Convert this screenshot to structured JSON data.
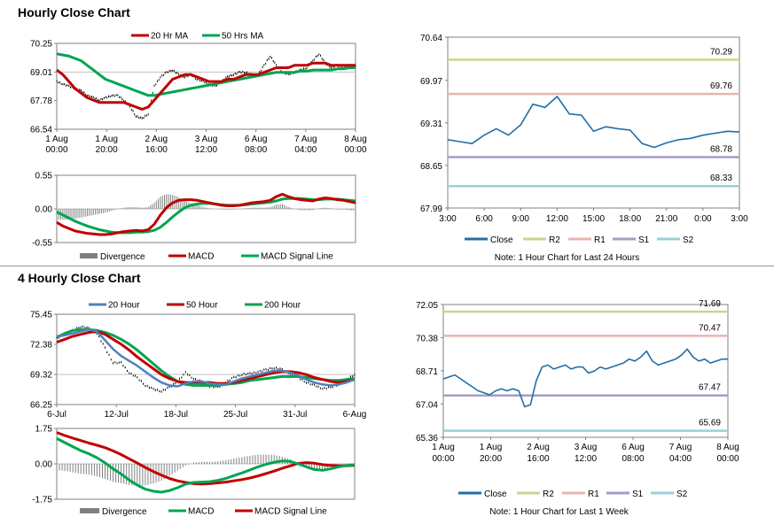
{
  "titles": {
    "hourly": "Hourly Close Chart",
    "four_hourly": "4 Hourly Close Chart"
  },
  "chart_data": [
    {
      "id": "hourly_price",
      "type": "line",
      "legend": [
        "20 Hr MA",
        "50 Hrs MA"
      ],
      "colors": {
        "price": "#000000",
        "ma_short": "#c00000",
        "ma_long": "#00a550"
      },
      "ylim": [
        66.54,
        70.25
      ],
      "yticks": [
        "70.25",
        "69.01",
        "67.78",
        "66.54"
      ],
      "xticks": [
        [
          "1 Aug",
          "00:00"
        ],
        [
          "1 Aug",
          "20:00"
        ],
        [
          "2 Aug",
          "16:00"
        ],
        [
          "3 Aug",
          "12:00"
        ],
        [
          "6 Aug",
          "08:00"
        ],
        [
          "7 Aug",
          "04:00"
        ],
        [
          "8 Aug",
          "00:00"
        ]
      ],
      "price": [
        68.6,
        68.5,
        68.4,
        68.3,
        68.2,
        68.0,
        67.9,
        67.8,
        67.9,
        68.0,
        68.0,
        67.8,
        67.5,
        67.1,
        67.0,
        67.2,
        68.4,
        68.8,
        69.0,
        69.1,
        68.9,
        68.8,
        68.9,
        68.7,
        68.6,
        68.5,
        68.4,
        68.6,
        68.8,
        68.9,
        69.0,
        69.0,
        68.9,
        68.9,
        69.3,
        69.7,
        69.3,
        69.0,
        68.9,
        69.0,
        69.1,
        69.2,
        69.5,
        69.8,
        69.4,
        69.2,
        69.3,
        69.2,
        69.3,
        69.3
      ],
      "ma_short": [
        69.1,
        68.9,
        68.6,
        68.3,
        68.1,
        67.9,
        67.8,
        67.7,
        67.7,
        67.7,
        67.7,
        67.7,
        67.6,
        67.5,
        67.4,
        67.5,
        67.8,
        68.1,
        68.4,
        68.7,
        68.8,
        68.9,
        68.9,
        68.8,
        68.7,
        68.6,
        68.6,
        68.6,
        68.7,
        68.7,
        68.8,
        68.9,
        68.9,
        68.9,
        69.0,
        69.1,
        69.2,
        69.2,
        69.2,
        69.3,
        69.3,
        69.3,
        69.4,
        69.4,
        69.4,
        69.3,
        69.3,
        69.3,
        69.3,
        69.3
      ],
      "ma_long": [
        69.8,
        69.75,
        69.7,
        69.6,
        69.5,
        69.3,
        69.1,
        68.9,
        68.7,
        68.6,
        68.5,
        68.4,
        68.3,
        68.2,
        68.1,
        68.0,
        68.0,
        68.05,
        68.1,
        68.15,
        68.2,
        68.25,
        68.3,
        68.35,
        68.4,
        68.45,
        68.5,
        68.55,
        68.6,
        68.65,
        68.7,
        68.75,
        68.8,
        68.85,
        68.9,
        68.95,
        69.0,
        69.0,
        69.0,
        69.0,
        69.05,
        69.05,
        69.1,
        69.1,
        69.1,
        69.1,
        69.15,
        69.15,
        69.2,
        69.2
      ]
    },
    {
      "id": "hourly_macd",
      "type": "line",
      "legend": [
        "Divergence",
        "MACD",
        "MACD Signal Line"
      ],
      "colors": {
        "divergence": "#808080",
        "macd": "#c00000",
        "signal": "#00a550"
      },
      "ylim": [
        -0.55,
        0.55
      ],
      "yticks": [
        "0.55",
        "0.00",
        "-0.55"
      ],
      "macd": [
        -0.22,
        -0.28,
        -0.32,
        -0.36,
        -0.38,
        -0.4,
        -0.41,
        -0.42,
        -0.42,
        -0.41,
        -0.39,
        -0.37,
        -0.36,
        -0.35,
        -0.36,
        -0.34,
        -0.25,
        -0.1,
        0.02,
        0.1,
        0.14,
        0.15,
        0.15,
        0.14,
        0.12,
        0.1,
        0.08,
        0.06,
        0.05,
        0.05,
        0.06,
        0.08,
        0.1,
        0.11,
        0.12,
        0.14,
        0.2,
        0.24,
        0.2,
        0.17,
        0.15,
        0.14,
        0.13,
        0.16,
        0.18,
        0.17,
        0.15,
        0.14,
        0.12,
        0.1
      ],
      "signal": [
        -0.05,
        -0.1,
        -0.15,
        -0.2,
        -0.24,
        -0.28,
        -0.31,
        -0.34,
        -0.36,
        -0.38,
        -0.39,
        -0.39,
        -0.39,
        -0.38,
        -0.38,
        -0.37,
        -0.35,
        -0.3,
        -0.22,
        -0.13,
        -0.05,
        0.02,
        0.06,
        0.08,
        0.09,
        0.09,
        0.08,
        0.07,
        0.06,
        0.06,
        0.06,
        0.07,
        0.08,
        0.09,
        0.1,
        0.11,
        0.13,
        0.16,
        0.17,
        0.17,
        0.17,
        0.16,
        0.15,
        0.15,
        0.16,
        0.16,
        0.16,
        0.15,
        0.14,
        0.13
      ],
      "divergence": [
        -0.17,
        -0.18,
        -0.17,
        -0.16,
        -0.14,
        -0.12,
        -0.1,
        -0.08,
        -0.06,
        -0.03,
        0.0,
        0.02,
        0.03,
        0.03,
        0.02,
        0.03,
        0.1,
        0.2,
        0.24,
        0.23,
        0.19,
        0.13,
        0.09,
        0.06,
        0.03,
        0.01,
        0.0,
        -0.01,
        -0.01,
        -0.01,
        0.0,
        0.01,
        0.02,
        0.02,
        0.02,
        0.03,
        0.07,
        0.08,
        0.03,
        0.0,
        -0.02,
        -0.02,
        -0.02,
        0.01,
        0.02,
        0.01,
        -0.01,
        -0.01,
        -0.02,
        -0.03
      ]
    },
    {
      "id": "hourly_levels",
      "type": "line",
      "legend": [
        "Close",
        "R2",
        "R1",
        "S1",
        "S2"
      ],
      "colors": {
        "close": "#1f6fa8",
        "r2": "#c6d68f",
        "r1": "#e6b5b1",
        "s1": "#a99bc8",
        "s2": "#98d0dc"
      },
      "ylim": [
        67.99,
        70.64
      ],
      "yticks": [
        "70.64",
        "69.97",
        "69.31",
        "68.65",
        "67.99"
      ],
      "xticks": [
        "3:00",
        "6:00",
        "9:00",
        "12:00",
        "15:00",
        "18:00",
        "21:00",
        "0:00",
        "3:00"
      ],
      "levels": {
        "R2": 70.29,
        "R1": 69.76,
        "S1": 68.78,
        "S2": 68.33
      },
      "level_labels": [
        "70.29",
        "69.76",
        "68.78",
        "68.33"
      ],
      "close": [
        69.05,
        69.02,
        68.99,
        69.12,
        69.22,
        69.12,
        69.28,
        69.6,
        69.55,
        69.72,
        69.45,
        69.43,
        69.18,
        69.25,
        69.22,
        69.2,
        68.99,
        68.93,
        69.0,
        69.05,
        69.07,
        69.12,
        69.15,
        69.18,
        69.17
      ],
      "note": "Note: 1 Hour Chart for Last 24 Hours"
    },
    {
      "id": "four_hourly_price",
      "type": "line",
      "legend": [
        "20 Hour",
        "50 Hour",
        "200 Hour"
      ],
      "colors": {
        "price": "#000000",
        "ma20": "#4f81bd",
        "ma50": "#c00000",
        "ma200": "#00a550"
      },
      "ylim": [
        66.25,
        75.45
      ],
      "yticks": [
        "75.45",
        "72.38",
        "69.32",
        "66.25"
      ],
      "xticks": [
        "6-Jul",
        "12-Jul",
        "18-Jul",
        "25-Jul",
        "31-Jul",
        "6-Aug"
      ],
      "price": [
        73.0,
        73.4,
        73.8,
        74.2,
        74.0,
        73.5,
        72.0,
        70.5,
        70.5,
        69.5,
        69.0,
        68.2,
        67.8,
        67.6,
        68.0,
        68.6,
        69.5,
        68.9,
        68.6,
        68.1,
        68.0,
        68.5,
        69.0,
        69.3,
        69.4,
        69.6,
        69.8,
        70.0,
        69.8,
        69.4,
        69.0,
        68.5,
        68.2,
        67.9,
        68.0,
        68.3,
        68.8,
        69.3
      ],
      "ma20": [
        73.2,
        73.3,
        73.5,
        73.7,
        73.9,
        73.7,
        72.8,
        71.9,
        71.2,
        70.7,
        70.2,
        69.6,
        69.0,
        68.5,
        68.2,
        68.1,
        68.4,
        68.6,
        68.6,
        68.4,
        68.3,
        68.3,
        68.6,
        68.9,
        69.1,
        69.3,
        69.5,
        69.7,
        69.7,
        69.5,
        69.2,
        68.8,
        68.5,
        68.3,
        68.2,
        68.3,
        68.5,
        68.8
      ],
      "ma50": [
        72.6,
        72.9,
        73.2,
        73.4,
        73.6,
        73.7,
        73.4,
        72.9,
        72.4,
        71.8,
        71.1,
        70.5,
        69.9,
        69.3,
        68.9,
        68.6,
        68.5,
        68.5,
        68.5,
        68.5,
        68.4,
        68.4,
        68.5,
        68.7,
        68.9,
        69.1,
        69.3,
        69.5,
        69.6,
        69.6,
        69.5,
        69.3,
        69.0,
        68.8,
        68.6,
        68.5,
        68.6,
        68.8
      ],
      "ma200": [
        73.1,
        73.5,
        73.8,
        73.9,
        73.9,
        73.8,
        73.6,
        73.3,
        72.9,
        72.4,
        71.8,
        71.1,
        70.4,
        69.7,
        69.1,
        68.6,
        68.3,
        68.2,
        68.2,
        68.2,
        68.2,
        68.3,
        68.4,
        68.5,
        68.7,
        68.8,
        68.9,
        69.0,
        69.1,
        69.1,
        69.1,
        69.0,
        68.9,
        68.8,
        68.7,
        68.7,
        68.8,
        68.9
      ]
    },
    {
      "id": "four_hourly_macd",
      "type": "line",
      "legend": [
        "Divergence",
        "MACD",
        "MACD Signal Line"
      ],
      "colors": {
        "divergence": "#808080",
        "macd": "#00a550",
        "signal": "#c00000"
      },
      "ylim": [
        -1.75,
        1.75
      ],
      "yticks": [
        "1.75",
        "0.00",
        "-1.75"
      ],
      "macd": [
        1.25,
        1.05,
        0.85,
        0.65,
        0.5,
        0.3,
        0.05,
        -0.25,
        -0.5,
        -0.8,
        -1.05,
        -1.25,
        -1.35,
        -1.4,
        -1.32,
        -1.18,
        -1.0,
        -0.92,
        -0.9,
        -0.88,
        -0.82,
        -0.72,
        -0.58,
        -0.45,
        -0.3,
        -0.15,
        -0.02,
        0.08,
        0.14,
        0.12,
        0.0,
        -0.15,
        -0.28,
        -0.32,
        -0.25,
        -0.15,
        -0.08,
        -0.05
      ],
      "signal": [
        1.55,
        1.4,
        1.27,
        1.15,
        1.03,
        0.92,
        0.8,
        0.64,
        0.46,
        0.25,
        0.04,
        -0.18,
        -0.38,
        -0.56,
        -0.72,
        -0.84,
        -0.92,
        -0.98,
        -1.0,
        -0.98,
        -0.94,
        -0.9,
        -0.84,
        -0.78,
        -0.7,
        -0.6,
        -0.48,
        -0.36,
        -0.22,
        -0.1,
        0.02,
        0.06,
        0.03,
        -0.04,
        -0.08,
        -0.1,
        -0.09,
        -0.08
      ],
      "divergence": [
        -0.3,
        -0.35,
        -0.42,
        -0.5,
        -0.53,
        -0.62,
        -0.75,
        -0.89,
        -0.96,
        -1.05,
        -1.09,
        -1.07,
        -0.97,
        -0.84,
        -0.6,
        -0.34,
        -0.08,
        0.06,
        0.1,
        0.1,
        0.12,
        0.18,
        0.26,
        0.33,
        0.4,
        0.45,
        0.46,
        0.44,
        0.36,
        0.22,
        -0.02,
        -0.21,
        -0.31,
        -0.28,
        -0.17,
        -0.05,
        0.01,
        0.03
      ]
    },
    {
      "id": "four_hourly_levels",
      "type": "line",
      "legend": [
        "Close",
        "R2",
        "R1",
        "S1",
        "S2"
      ],
      "colors": {
        "close": "#1f6fa8",
        "r2": "#c6d68f",
        "r1": "#e6b5b1",
        "s1": "#a99bc8",
        "s2": "#98d0dc"
      },
      "ylim": [
        65.36,
        72.05
      ],
      "yticks": [
        "72.05",
        "70.38",
        "68.71",
        "67.04",
        "65.36"
      ],
      "xticks": [
        [
          "1 Aug",
          "00:00"
        ],
        [
          "1 Aug",
          "20:00"
        ],
        [
          "2 Aug",
          "16:00"
        ],
        [
          "3 Aug",
          "12:00"
        ],
        [
          "6 Aug",
          "08:00"
        ],
        [
          "7 Aug",
          "04:00"
        ],
        [
          "8 Aug",
          "00:00"
        ]
      ],
      "levels": {
        "R2": 71.69,
        "R1": 70.47,
        "S1": 67.47,
        "S2": 65.69
      },
      "level_labels": [
        "71.69",
        "70.47",
        "67.47",
        "65.69"
      ],
      "close": [
        68.3,
        68.4,
        68.5,
        68.3,
        68.1,
        67.9,
        67.7,
        67.6,
        67.5,
        67.7,
        67.8,
        67.7,
        67.8,
        67.7,
        66.9,
        67.0,
        68.2,
        68.9,
        69.0,
        68.8,
        68.9,
        69.0,
        68.8,
        68.9,
        68.9,
        68.6,
        68.7,
        68.9,
        68.8,
        68.9,
        69.0,
        69.1,
        69.3,
        69.2,
        69.4,
        69.7,
        69.2,
        69.0,
        69.1,
        69.2,
        69.3,
        69.5,
        69.8,
        69.4,
        69.2,
        69.3,
        69.1,
        69.2,
        69.3,
        69.3
      ],
      "note": "Note: 1 Hour Chart for Last 1 Week"
    }
  ]
}
